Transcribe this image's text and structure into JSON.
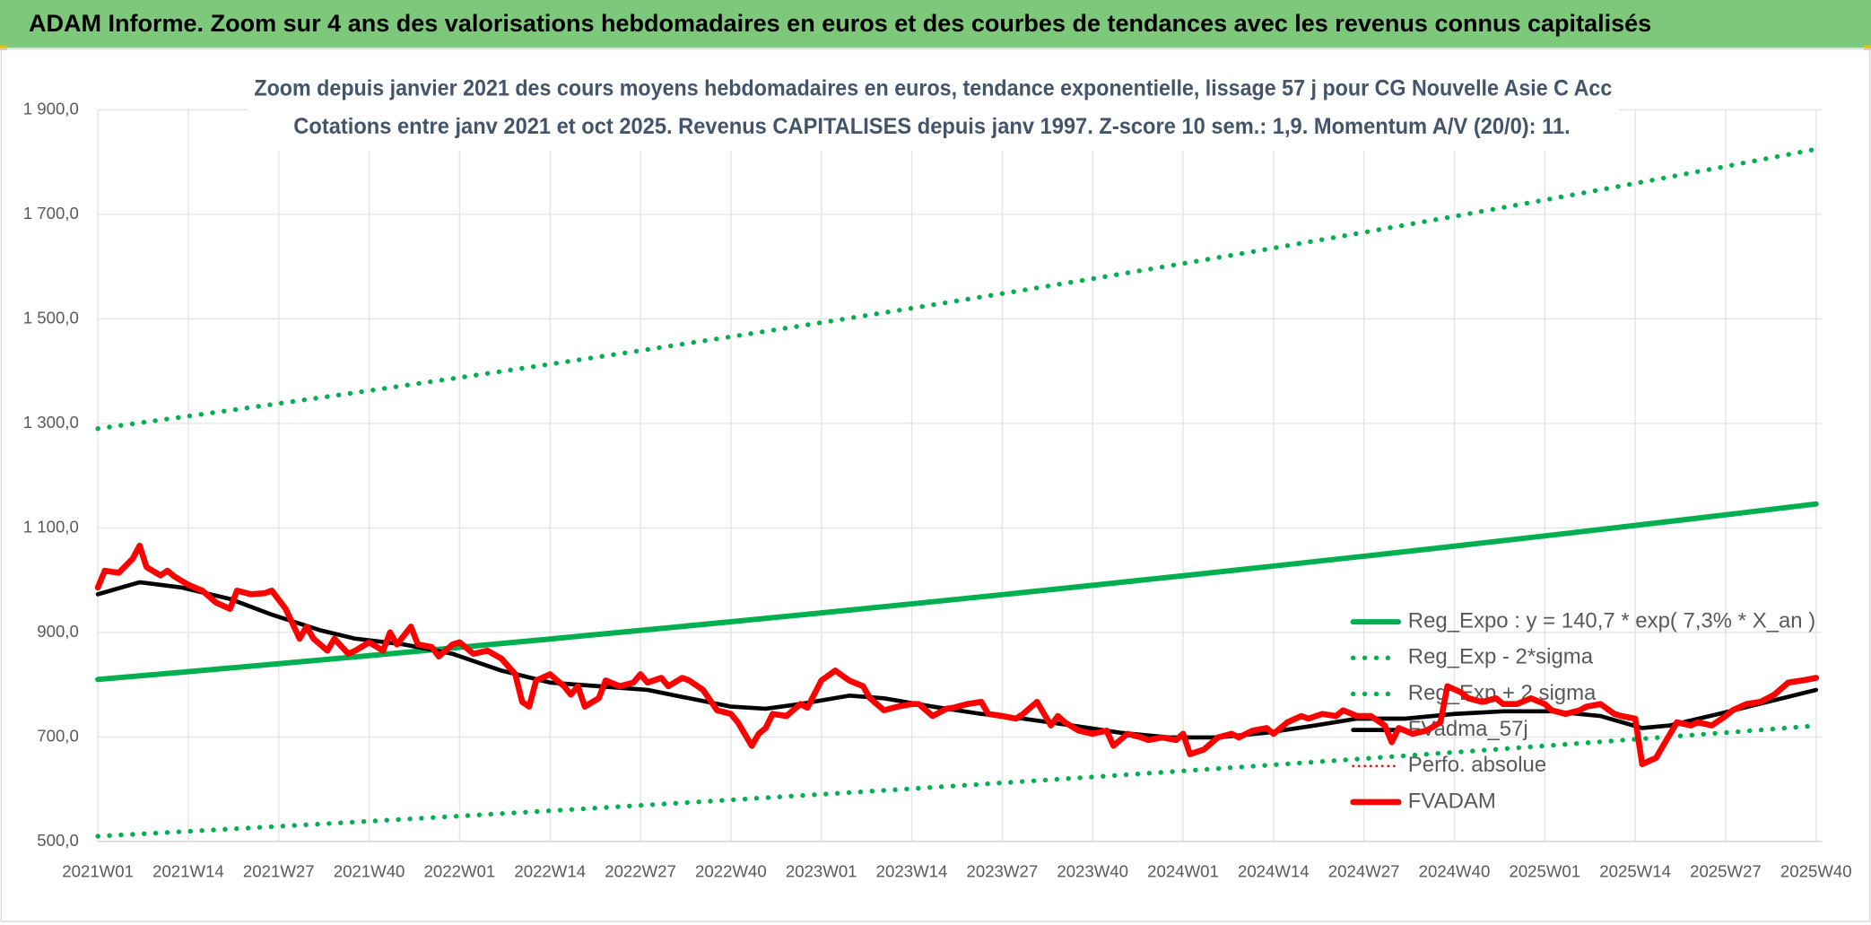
{
  "chart_data": {
    "type": "line",
    "title": "ADAM Informe. Zoom sur 4 ans des valorisations hebdomadaires en euros et des courbes de tendances avec les revenus connus capitalisés",
    "subtitle": [
      "Zoom depuis janvier 2021 des cours moyens hebdomadaires en euros, tendance exponentielle, lissage 57 j pour CG Nouvelle Asie C Acc",
      "Cotations entre janv 2021 et oct 2025. Revenus CAPITALISES depuis janv 1997. Z-score 10 sem.: 1,9. Momentum A/V (20/0): 11."
    ],
    "xlim": [
      0,
      247
    ],
    "xticks": [
      {
        "value": 0,
        "label": "2021W01"
      },
      {
        "value": 13,
        "label": "2021W14"
      },
      {
        "value": 26,
        "label": "2021W27"
      },
      {
        "value": 39,
        "label": "2021W40"
      },
      {
        "value": 52,
        "label": "2022W01"
      },
      {
        "value": 65,
        "label": "2022W14"
      },
      {
        "value": 78,
        "label": "2022W27"
      },
      {
        "value": 91,
        "label": "2022W40"
      },
      {
        "value": 104,
        "label": "2023W01"
      },
      {
        "value": 117,
        "label": "2023W14"
      },
      {
        "value": 130,
        "label": "2023W27"
      },
      {
        "value": 143,
        "label": "2023W40"
      },
      {
        "value": 156,
        "label": "2024W01"
      },
      {
        "value": 169,
        "label": "2024W14"
      },
      {
        "value": 182,
        "label": "2024W27"
      },
      {
        "value": 195,
        "label": "2024W40"
      },
      {
        "value": 208,
        "label": "2025W01"
      },
      {
        "value": 221,
        "label": "2025W14"
      },
      {
        "value": 234,
        "label": "2025W27"
      },
      {
        "value": 247,
        "label": "2025W40"
      }
    ],
    "ylim": [
      500,
      1900
    ],
    "yticks": [
      {
        "value": 500,
        "label": "500,0"
      },
      {
        "value": 700,
        "label": "700,0"
      },
      {
        "value": 900,
        "label": "900,0"
      },
      {
        "value": 1100,
        "label": "1 100,0"
      },
      {
        "value": 1300,
        "label": "1 300,0"
      },
      {
        "value": 1500,
        "label": "1 500,0"
      },
      {
        "value": 1700,
        "label": "1 700,0"
      },
      {
        "value": 1900,
        "label": "1 900,0"
      }
    ],
    "grid": true,
    "legend": "right",
    "series": [
      {
        "name": "Reg_Expo : y = 140,7 * exp( 7,3% *  X_an )",
        "color": "#00b050",
        "style": "solid",
        "width": 4.5,
        "x": [
          0,
          13,
          26,
          39,
          52,
          65,
          78,
          91,
          104,
          117,
          130,
          143,
          156,
          169,
          182,
          195,
          208,
          221,
          234,
          247
        ],
        "values": [
          810,
          824.9,
          840.1,
          855.6,
          871.4,
          887.4,
          903.8,
          920.4,
          937.4,
          954.6,
          972.2,
          990.1,
          1008.4,
          1026.9,
          1045.8,
          1065.1,
          1084.7,
          1104.7,
          1125.0,
          1145.8
        ]
      },
      {
        "name": "Reg_Exp - 2*sigma",
        "color": "#00b050",
        "style": "dotted",
        "width": 4,
        "x": [
          0,
          13,
          26,
          39,
          52,
          65,
          78,
          91,
          104,
          117,
          130,
          143,
          156,
          169,
          182,
          195,
          208,
          221,
          234,
          247
        ],
        "values": [
          510,
          519.4,
          528.9,
          538.7,
          548.6,
          558.7,
          569.0,
          579.5,
          590.2,
          601.0,
          612.1,
          623.4,
          634.9,
          646.6,
          658.5,
          670.6,
          682.9,
          695.5,
          708.3,
          721.4
        ]
      },
      {
        "name": "Reg_Exp + 2 sigma",
        "color": "#00b050",
        "style": "dotted",
        "width": 4,
        "x": [
          0,
          13,
          26,
          39,
          52,
          65,
          78,
          91,
          104,
          117,
          130,
          143,
          156,
          169,
          182,
          195,
          208,
          221,
          234,
          247
        ],
        "values": [
          1290,
          1313.8,
          1338.0,
          1362.6,
          1387.7,
          1413.3,
          1439.3,
          1465.8,
          1492.8,
          1520.3,
          1548.3,
          1576.8,
          1605.9,
          1635.4,
          1665.5,
          1696.2,
          1727.5,
          1759.3,
          1791.7,
          1824.7
        ]
      },
      {
        "name": "FVadma_57j",
        "color": "#000000",
        "style": "solid",
        "width": 3.5,
        "x": [
          0,
          6,
          12,
          19,
          25,
          32,
          37,
          44,
          51,
          58,
          65,
          72,
          79,
          85,
          91,
          96,
          101,
          108,
          113,
          120,
          127,
          133,
          140,
          147,
          154,
          161,
          168,
          175,
          181,
          188,
          195,
          202,
          209,
          216,
          222,
          226,
          233,
          240,
          247
        ],
        "values": [
          973,
          996,
          986,
          964,
          934,
          904,
          888,
          877,
          859,
          827,
          804,
          797,
          790,
          774,
          758,
          754,
          763,
          779,
          774,
          758,
          744,
          735,
          722,
          708,
          699,
          699,
          708,
          722,
          735,
          735,
          744,
          749,
          749,
          740,
          717,
          722,
          744,
          767,
          790
        ]
      },
      {
        "name": "Perfo. absolue",
        "color": "#ff0000",
        "style": "dotted",
        "width": 2
      },
      {
        "name": "FVADAM",
        "color": "#ff0000",
        "style": "solid",
        "width": 5,
        "x": [
          0,
          1,
          3,
          5,
          6,
          7,
          9,
          10,
          11,
          13,
          15,
          17,
          19,
          20,
          22,
          24,
          25,
          27,
          29,
          30,
          31,
          33,
          34,
          36,
          37,
          39,
          41,
          42,
          43,
          45,
          46,
          48,
          49,
          51,
          52,
          54,
          56,
          58,
          60,
          61,
          62,
          63,
          65,
          67,
          68,
          69,
          70,
          72,
          73,
          75,
          77,
          78,
          79,
          81,
          82,
          84,
          85,
          87,
          89,
          91,
          92,
          94,
          95,
          96,
          97,
          99,
          101,
          102,
          104,
          106,
          108,
          110,
          111,
          113,
          115,
          117,
          118,
          120,
          122,
          123,
          125,
          127,
          128,
          130,
          132,
          133,
          135,
          137,
          138,
          139,
          141,
          143,
          145,
          146,
          148,
          150,
          151,
          153,
          155,
          156,
          157,
          159,
          161,
          163,
          164,
          166,
          168,
          169,
          171,
          173,
          174,
          176,
          178,
          179,
          181,
          183,
          185,
          186,
          187,
          189,
          191,
          193,
          194,
          196,
          197,
          199,
          201,
          202,
          204,
          206,
          208,
          209,
          211,
          213,
          214,
          216,
          218,
          219,
          221,
          222,
          224,
          225,
          227,
          229,
          230,
          232,
          234,
          235,
          237,
          239,
          240,
          241,
          243,
          245,
          247
        ],
        "values": [
          986,
          1018,
          1014,
          1041,
          1066,
          1025,
          1009,
          1018,
          1007,
          991,
          980,
          957,
          945,
          980,
          973,
          975,
          980,
          945,
          888,
          911,
          888,
          865,
          888,
          859,
          865,
          881,
          865,
          900,
          877,
          911,
          877,
          872,
          854,
          877,
          881,
          859,
          865,
          850,
          820,
          767,
          758,
          808,
          820,
          797,
          781,
          797,
          758,
          774,
          808,
          797,
          804,
          820,
          804,
          813,
          797,
          813,
          808,
          790,
          751,
          744,
          728,
          683,
          706,
          717,
          744,
          740,
          763,
          756,
          808,
          827,
          808,
          797,
          774,
          751,
          758,
          763,
          763,
          740,
          754,
          756,
          763,
          767,
          744,
          740,
          735,
          744,
          767,
          722,
          740,
          728,
          712,
          706,
          712,
          683,
          706,
          699,
          694,
          699,
          694,
          706,
          667,
          676,
          699,
          706,
          699,
          712,
          717,
          706,
          728,
          740,
          735,
          744,
          740,
          751,
          740,
          740,
          722,
          690,
          717,
          706,
          712,
          728,
          797,
          785,
          774,
          767,
          774,
          763,
          763,
          774,
          763,
          751,
          744,
          751,
          758,
          763,
          744,
          740,
          735,
          648,
          660,
          683,
          728,
          722,
          728,
          722,
          740,
          751,
          763,
          767,
          774,
          781,
          804,
          808,
          813
        ]
      }
    ]
  }
}
